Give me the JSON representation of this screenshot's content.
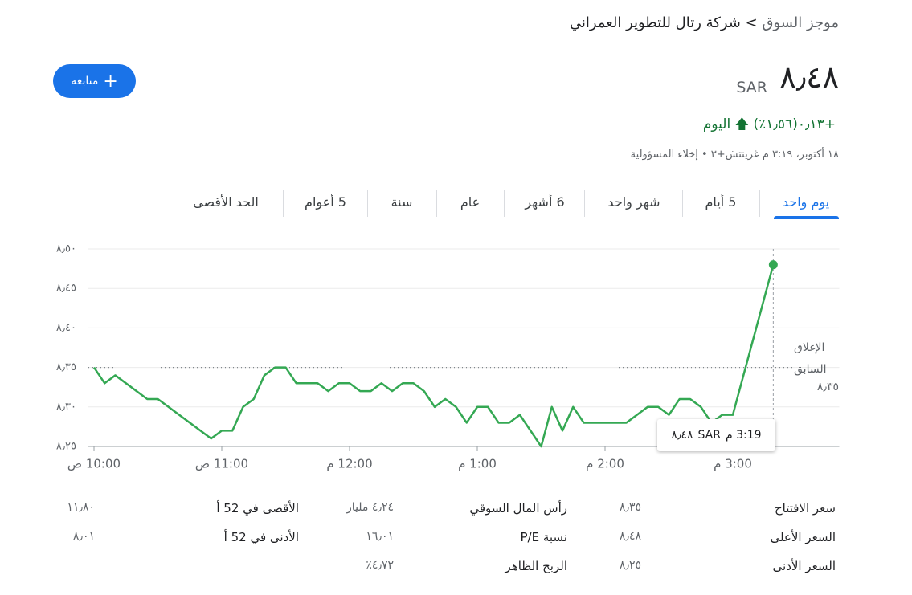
{
  "header": {
    "breadcrumb_root": "موجز السوق",
    "breadcrumb_sep": ">",
    "company": "شركة رتال للتطوير العمراني",
    "price": "٨٫٤٨",
    "currency": "SAR",
    "change": "+٠٫١٣",
    "change_pct": "(١٫٥٦٪)",
    "change_period": "اليوم",
    "timestamp": "١٨ أكتوبر، ٣:١٩ م غرينتش+٣ • ",
    "disclaimer": "إخلاء المسؤولية",
    "follow": "متابعة"
  },
  "tabs": [
    "يوم واحد",
    "5 أيام",
    "شهر واحد",
    "6 أشهر",
    "عام",
    "سنة",
    "5 أعوام",
    "الحد الأقصى"
  ],
  "chart_data": {
    "type": "line",
    "color": "#34a853",
    "x": [
      "10:00",
      "10:05",
      "10:10",
      "10:25",
      "10:30",
      "10:55",
      "11:00",
      "11:05",
      "11:10",
      "11:15",
      "11:20",
      "11:25",
      "11:30",
      "11:35",
      "11:45",
      "11:50",
      "11:55",
      "12:00",
      "12:05",
      "12:10",
      "12:15",
      "12:20",
      "12:25",
      "12:30",
      "12:35",
      "12:40",
      "12:45",
      "12:50",
      "12:55",
      "13:00",
      "13:05",
      "13:10",
      "13:15",
      "13:20",
      "13:30",
      "13:35",
      "13:40",
      "13:45",
      "13:50",
      "14:10",
      "14:20",
      "14:25",
      "14:30",
      "14:35",
      "14:40",
      "14:45",
      "14:50",
      "14:55",
      "15:00",
      "15:19"
    ],
    "values": [
      8.35,
      8.33,
      8.34,
      8.31,
      8.31,
      8.26,
      8.27,
      8.27,
      8.3,
      8.31,
      8.34,
      8.35,
      8.35,
      8.33,
      8.33,
      8.32,
      8.33,
      8.33,
      8.32,
      8.32,
      8.33,
      8.32,
      8.33,
      8.33,
      8.32,
      8.3,
      8.31,
      8.3,
      8.28,
      8.3,
      8.3,
      8.28,
      8.28,
      8.29,
      8.25,
      8.3,
      8.27,
      8.3,
      8.28,
      8.28,
      8.3,
      8.3,
      8.29,
      8.31,
      8.31,
      8.3,
      8.28,
      8.29,
      8.29,
      8.48
    ],
    "xlim": [
      "09:42",
      "15:50"
    ],
    "xticks": [
      {
        "value": "10:00",
        "label": "10:00 ص"
      },
      {
        "value": "11:00",
        "label": "11:00 ص"
      },
      {
        "value": "12:00",
        "label": "12:00 م"
      },
      {
        "value": "13:00",
        "label": "1:00 م"
      },
      {
        "value": "14:00",
        "label": "2:00 م"
      },
      {
        "value": "15:00",
        "label": "3:00 م"
      }
    ],
    "ylim": [
      8.25,
      8.5
    ],
    "yticks": [
      {
        "value": 8.25,
        "label": "٨٫٢٥"
      },
      {
        "value": 8.3,
        "label": "٨٫٣٠"
      },
      {
        "value": 8.35,
        "label": "٨٫٣٥"
      },
      {
        "value": 8.4,
        "label": "٨٫٤٠"
      },
      {
        "value": 8.45,
        "label": "٨٫٤٥"
      },
      {
        "value": 8.5,
        "label": "٨٫٥٠"
      }
    ],
    "grid": true,
    "previous_close": 8.35,
    "previous_close_text": "الإغلاق السابق",
    "previous_close_label": "٨٫٣٥",
    "tooltip": {
      "time": "3:19 م",
      "price": "٨٫٤٨",
      "currency": "SAR"
    }
  },
  "stats": [
    [
      [
        "سعر الافتتاح",
        "٨٫٣٥"
      ],
      [
        "السعر الأعلى",
        "٨٫٤٨"
      ],
      [
        "السعر الأدنى",
        "٨٫٢٥"
      ]
    ],
    [
      [
        "رأس المال السوقي",
        "٤٫٢٤ مليار"
      ],
      [
        "نسبة P/E",
        "١٦٫٠١"
      ],
      [
        "الربح الظاهر",
        "٤٫٧٢٪"
      ]
    ],
    [
      [
        "الأقصى في 52 أ",
        "١١٫٨٠"
      ],
      [
        "الأدنى في 52 أ",
        "٨٫٠١"
      ]
    ]
  ]
}
